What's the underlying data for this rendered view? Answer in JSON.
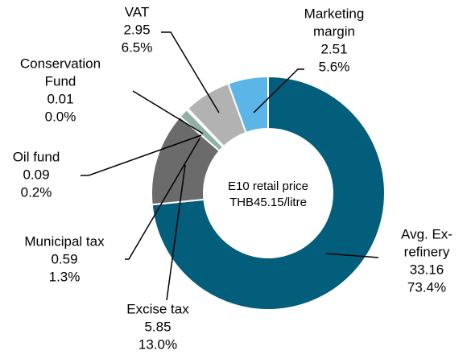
{
  "chart_data": {
    "type": "donut",
    "center_label": [
      "E10 retail price",
      "THB45.15/litre"
    ],
    "categories": [
      [
        "Avg. Ex-",
        "refinery"
      ],
      [
        "Excise tax"
      ],
      [
        "Municipal tax"
      ],
      [
        "Oil fund"
      ],
      [
        "Conservation",
        "Fund"
      ],
      [
        "VAT"
      ],
      [
        "Marketing",
        "margin"
      ]
    ],
    "values": [
      33.16,
      5.85,
      0.59,
      0.09,
      0.01,
      2.95,
      2.51
    ],
    "percent_labels": [
      "73.4%",
      "13.0%",
      "1.3%",
      "0.2%",
      "0.0%",
      "6.5%",
      "5.6%"
    ],
    "colors": [
      "#035e7b",
      "#6b6b6b",
      "#8fb0a4",
      "#c9d9d1",
      "#eeeeee",
      "#b2b2b2",
      "#5bb5e6"
    ]
  }
}
